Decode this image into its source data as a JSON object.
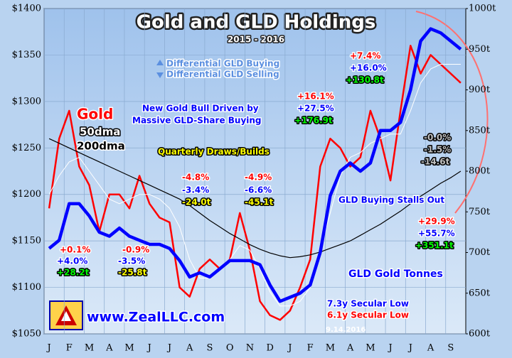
{
  "chart_data": {
    "type": "line",
    "title": "Gold and GLD Holdings",
    "subtitle": "2015 - 2016",
    "categories": [
      "J",
      null,
      "F",
      null,
      "M",
      null,
      "A",
      null,
      "M",
      null,
      "J",
      null,
      "J",
      null,
      "A",
      null,
      "S",
      null,
      "O",
      null,
      "N",
      null,
      "D",
      null,
      "J",
      null,
      "F",
      null,
      "M",
      null,
      "A",
      null,
      "M",
      null,
      "J",
      null,
      "J",
      null,
      "A",
      null,
      "S",
      null
    ],
    "series": [
      {
        "name": "Gold",
        "color": "#ff0000",
        "values": [
          1185,
          1260,
          1290,
          1230,
          1210,
          1160,
          1200,
          1200,
          1185,
          1220,
          1190,
          1175,
          1170,
          1100,
          1090,
          1120,
          1130,
          1120,
          1130,
          1180,
          1140,
          1085,
          1070,
          1065,
          1075,
          1100,
          1130,
          1230,
          1260,
          1250,
          1230,
          1240,
          1290,
          1260,
          1215,
          1290,
          1360,
          1330,
          1350,
          1340,
          1330,
          1320
        ]
      },
      {
        "name": "50dma",
        "color": "#ffffff",
        "values": [
          1200,
          1220,
          1235,
          1240,
          1225,
          1210,
          1195,
          1190,
          1195,
          1200,
          1200,
          1195,
          1185,
          1165,
          1130,
          1110,
          1110,
          1120,
          1130,
          1145,
          1140,
          1120,
          1095,
          1080,
          1080,
          1085,
          1100,
          1140,
          1180,
          1220,
          1240,
          1245,
          1255,
          1260,
          1265,
          1265,
          1290,
          1320,
          1335,
          1340,
          1340,
          1340
        ]
      },
      {
        "name": "200dma",
        "color": "#000000",
        "values": [
          1260,
          1255,
          1250,
          1245,
          1240,
          1235,
          1230,
          1225,
          1220,
          1215,
          1210,
          1205,
          1200,
          1195,
          1188,
          1180,
          1172,
          1165,
          1158,
          1152,
          1146,
          1141,
          1137,
          1134,
          1132,
          1133,
          1135,
          1138,
          1142,
          1146,
          1150,
          1156,
          1162,
          1168,
          1175,
          1182,
          1190,
          1198,
          1205,
          1212,
          1218,
          1225
        ]
      },
      {
        "name": "GLD Gold Tonnes",
        "color": "#0000ff",
        "axis": "y2",
        "values": [
          705,
          715,
          760,
          760,
          745,
          725,
          720,
          730,
          720,
          715,
          710,
          710,
          705,
          690,
          670,
          675,
          670,
          680,
          690,
          690,
          690,
          685,
          660,
          640,
          645,
          650,
          660,
          700,
          770,
          800,
          810,
          800,
          810,
          850,
          850,
          860,
          900,
          960,
          975,
          970,
          960,
          950
        ]
      }
    ],
    "ylim": [
      1050,
      1400
    ],
    "yticks": [
      {
        "value": 1050,
        "label": "$1050"
      },
      {
        "value": 1100,
        "label": "$1100"
      },
      {
        "value": 1150,
        "label": "$1150"
      },
      {
        "value": 1200,
        "label": "$1200"
      },
      {
        "value": 1250,
        "label": "$1250"
      },
      {
        "value": 1300,
        "label": "$1300"
      },
      {
        "value": 1350,
        "label": "$1350"
      },
      {
        "value": 1400,
        "label": "$1400"
      }
    ],
    "y2lim": [
      600,
      1000
    ],
    "y2ticks": [
      {
        "value": 600,
        "label": "600t"
      },
      {
        "value": 650,
        "label": "650t"
      },
      {
        "value": 700,
        "label": "700t"
      },
      {
        "value": 750,
        "label": "750t"
      },
      {
        "value": 800,
        "label": "800t"
      },
      {
        "value": 850,
        "label": "850t"
      },
      {
        "value": 900,
        "label": "900t"
      },
      {
        "value": 950,
        "label": "950t"
      },
      {
        "value": 1000,
        "label": "1000t"
      }
    ],
    "grid": true,
    "annotations": [
      {
        "text": "Differential GLD Buying",
        "color": "#5b8fe0"
      },
      {
        "text": "Differential GLD Selling",
        "color": "#5b8fe0"
      },
      {
        "text": "New Gold Bull Driven by",
        "color": "#0000ff"
      },
      {
        "text": "Massive GLD-Share Buying",
        "color": "#0000ff"
      },
      {
        "text": "Quarterly Draws/Builds",
        "color": "#ffff00"
      },
      {
        "text": "+0.1%",
        "color": "#ff0000"
      },
      {
        "text": "+4.0%",
        "color": "#0000ff"
      },
      {
        "text": "+28.2t",
        "color": "#00ff00"
      },
      {
        "text": "-0.9%",
        "color": "#ff0000"
      },
      {
        "text": "-3.5%",
        "color": "#0000ff"
      },
      {
        "text": "-25.8t",
        "color": "#ffff00"
      },
      {
        "text": "-4.8%",
        "color": "#ff0000"
      },
      {
        "text": "-3.4%",
        "color": "#0000ff"
      },
      {
        "text": "-24.0t",
        "color": "#ffff00"
      },
      {
        "text": "-4.9%",
        "color": "#ff0000"
      },
      {
        "text": "-6.6%",
        "color": "#0000ff"
      },
      {
        "text": "-45.1t",
        "color": "#ffff00"
      },
      {
        "text": "+16.1%",
        "color": "#ff0000"
      },
      {
        "text": "+27.5%",
        "color": "#0000ff"
      },
      {
        "text": "+176.9t",
        "color": "#00ff00"
      },
      {
        "text": "+7.4%",
        "color": "#ff0000"
      },
      {
        "text": "+16.0%",
        "color": "#0000ff"
      },
      {
        "text": "+130.8t",
        "color": "#00ff00"
      },
      {
        "text": "-0.0%",
        "color": "#c0c0c0"
      },
      {
        "text": "-1.5%",
        "color": "#c0c0c0"
      },
      {
        "text": "-14.6t",
        "color": "#c0c0c0"
      },
      {
        "text": "+29.9%",
        "color": "#ff0000"
      },
      {
        "text": "+55.7%",
        "color": "#0000ff"
      },
      {
        "text": "+351.1t",
        "color": "#00ff00"
      },
      {
        "text": "GLD Buying Stalls Out",
        "color": "#0000ff"
      },
      {
        "text": "7.3y Secular Low",
        "color": "#0000ff"
      },
      {
        "text": "6.1y Secular Low",
        "color": "#ff0000"
      },
      {
        "text": "9.14.2016",
        "color": "#ffffff"
      },
      {
        "text": "www.ZealLLC.com",
        "color": "#0000ff"
      }
    ]
  }
}
